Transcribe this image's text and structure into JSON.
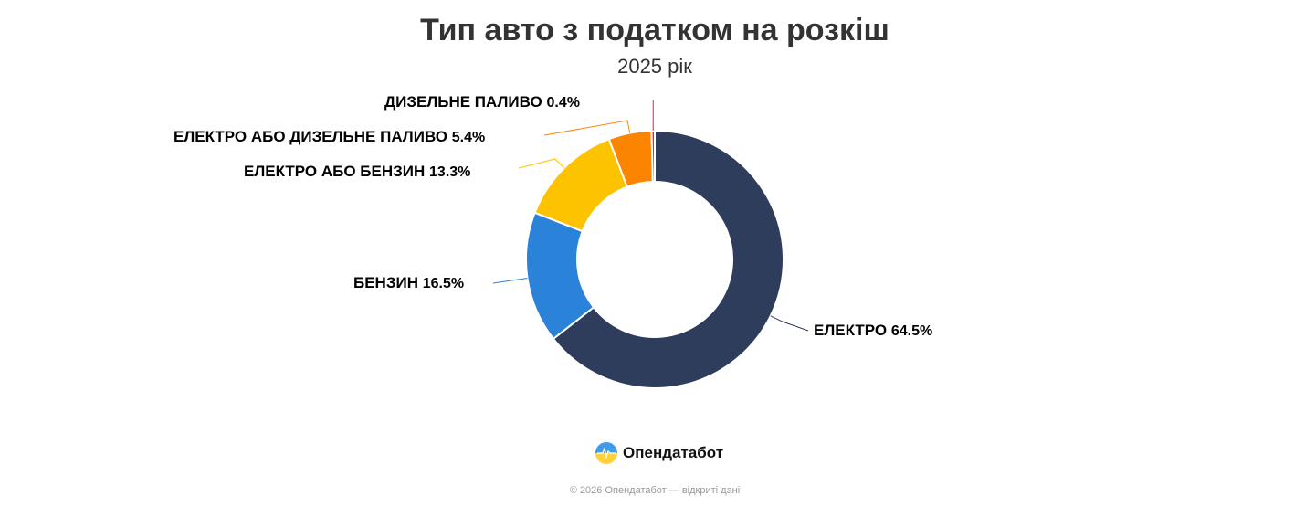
{
  "chart_data": {
    "type": "pie",
    "donut": true,
    "title": "Тип авто з податком на розкіш",
    "subtitle": "2025 рік",
    "slices": [
      {
        "label": "ЕЛЕКТРО",
        "value": 64.5,
        "value_label": "64.5%",
        "color": "#2e3d5c"
      },
      {
        "label": "БЕНЗИН",
        "value": 16.5,
        "value_label": "16.5%",
        "color": "#2b82d9"
      },
      {
        "label": "ЕЛЕКТРО АБО БЕНЗИН",
        "value": 13.3,
        "value_label": "13.3%",
        "color": "#fdc300"
      },
      {
        "label": "ЕЛЕКТРО АБО ДИЗЕЛЬНЕ ПАЛИВО",
        "value": 5.4,
        "value_label": "5.4%",
        "color": "#fb8500"
      },
      {
        "label": "ДИЗЕЛЬНЕ ПАЛИВО",
        "value": 0.4,
        "value_label": "0.4%",
        "color": "#e0263c"
      }
    ]
  },
  "footer": {
    "logo_text": "Опендатабот",
    "copyright": "© 2026 Опендатабот — відкриті дані"
  }
}
